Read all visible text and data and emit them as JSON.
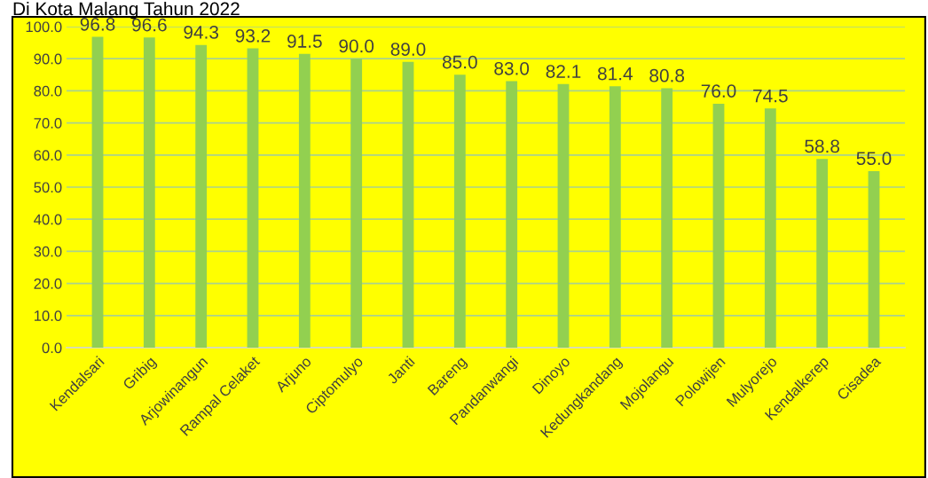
{
  "chart_data": {
    "type": "bar",
    "title": "Di Kota Malang Tahun 2022",
    "categories": [
      "Kendalsari",
      "Gribig",
      "Arjowinangun",
      "Rampal Celaket",
      "Arjuno",
      "Ciptomulyo",
      "Janti",
      "Bareng",
      "Pandanwangi",
      "Dinoyo",
      "Kedungkandang",
      "Mojolangu",
      "Polowijen",
      "Mulyorejo",
      "Kendalkerep",
      "Cisadea"
    ],
    "values": [
      96.8,
      96.6,
      94.3,
      93.2,
      91.5,
      90.0,
      89.0,
      85.0,
      83.0,
      82.1,
      81.4,
      80.8,
      76.0,
      74.5,
      58.8,
      55.0
    ],
    "value_labels": [
      "96.8",
      "96.6",
      "94.3",
      "93.2",
      "91.5",
      "90.0",
      "89.0",
      "85.0",
      "83.0",
      "82.1",
      "81.4",
      "80.8",
      "76.0",
      "74.5",
      "58.8",
      "55.0"
    ],
    "color": "#92d050",
    "ylim": [
      0,
      100
    ],
    "yticks": [
      {
        "value": 0,
        "label": "0.0"
      },
      {
        "value": 10,
        "label": "10.0"
      },
      {
        "value": 20,
        "label": "20.0"
      },
      {
        "value": 30,
        "label": "30.0"
      },
      {
        "value": 40,
        "label": "40.0"
      },
      {
        "value": 50,
        "label": "50.0"
      },
      {
        "value": 60,
        "label": "60.0"
      },
      {
        "value": 70,
        "label": "70.0"
      },
      {
        "value": 80,
        "label": "80.0"
      },
      {
        "value": 90,
        "label": "90.0"
      },
      {
        "value": 100,
        "label": "100.0"
      }
    ],
    "grid": "y"
  }
}
